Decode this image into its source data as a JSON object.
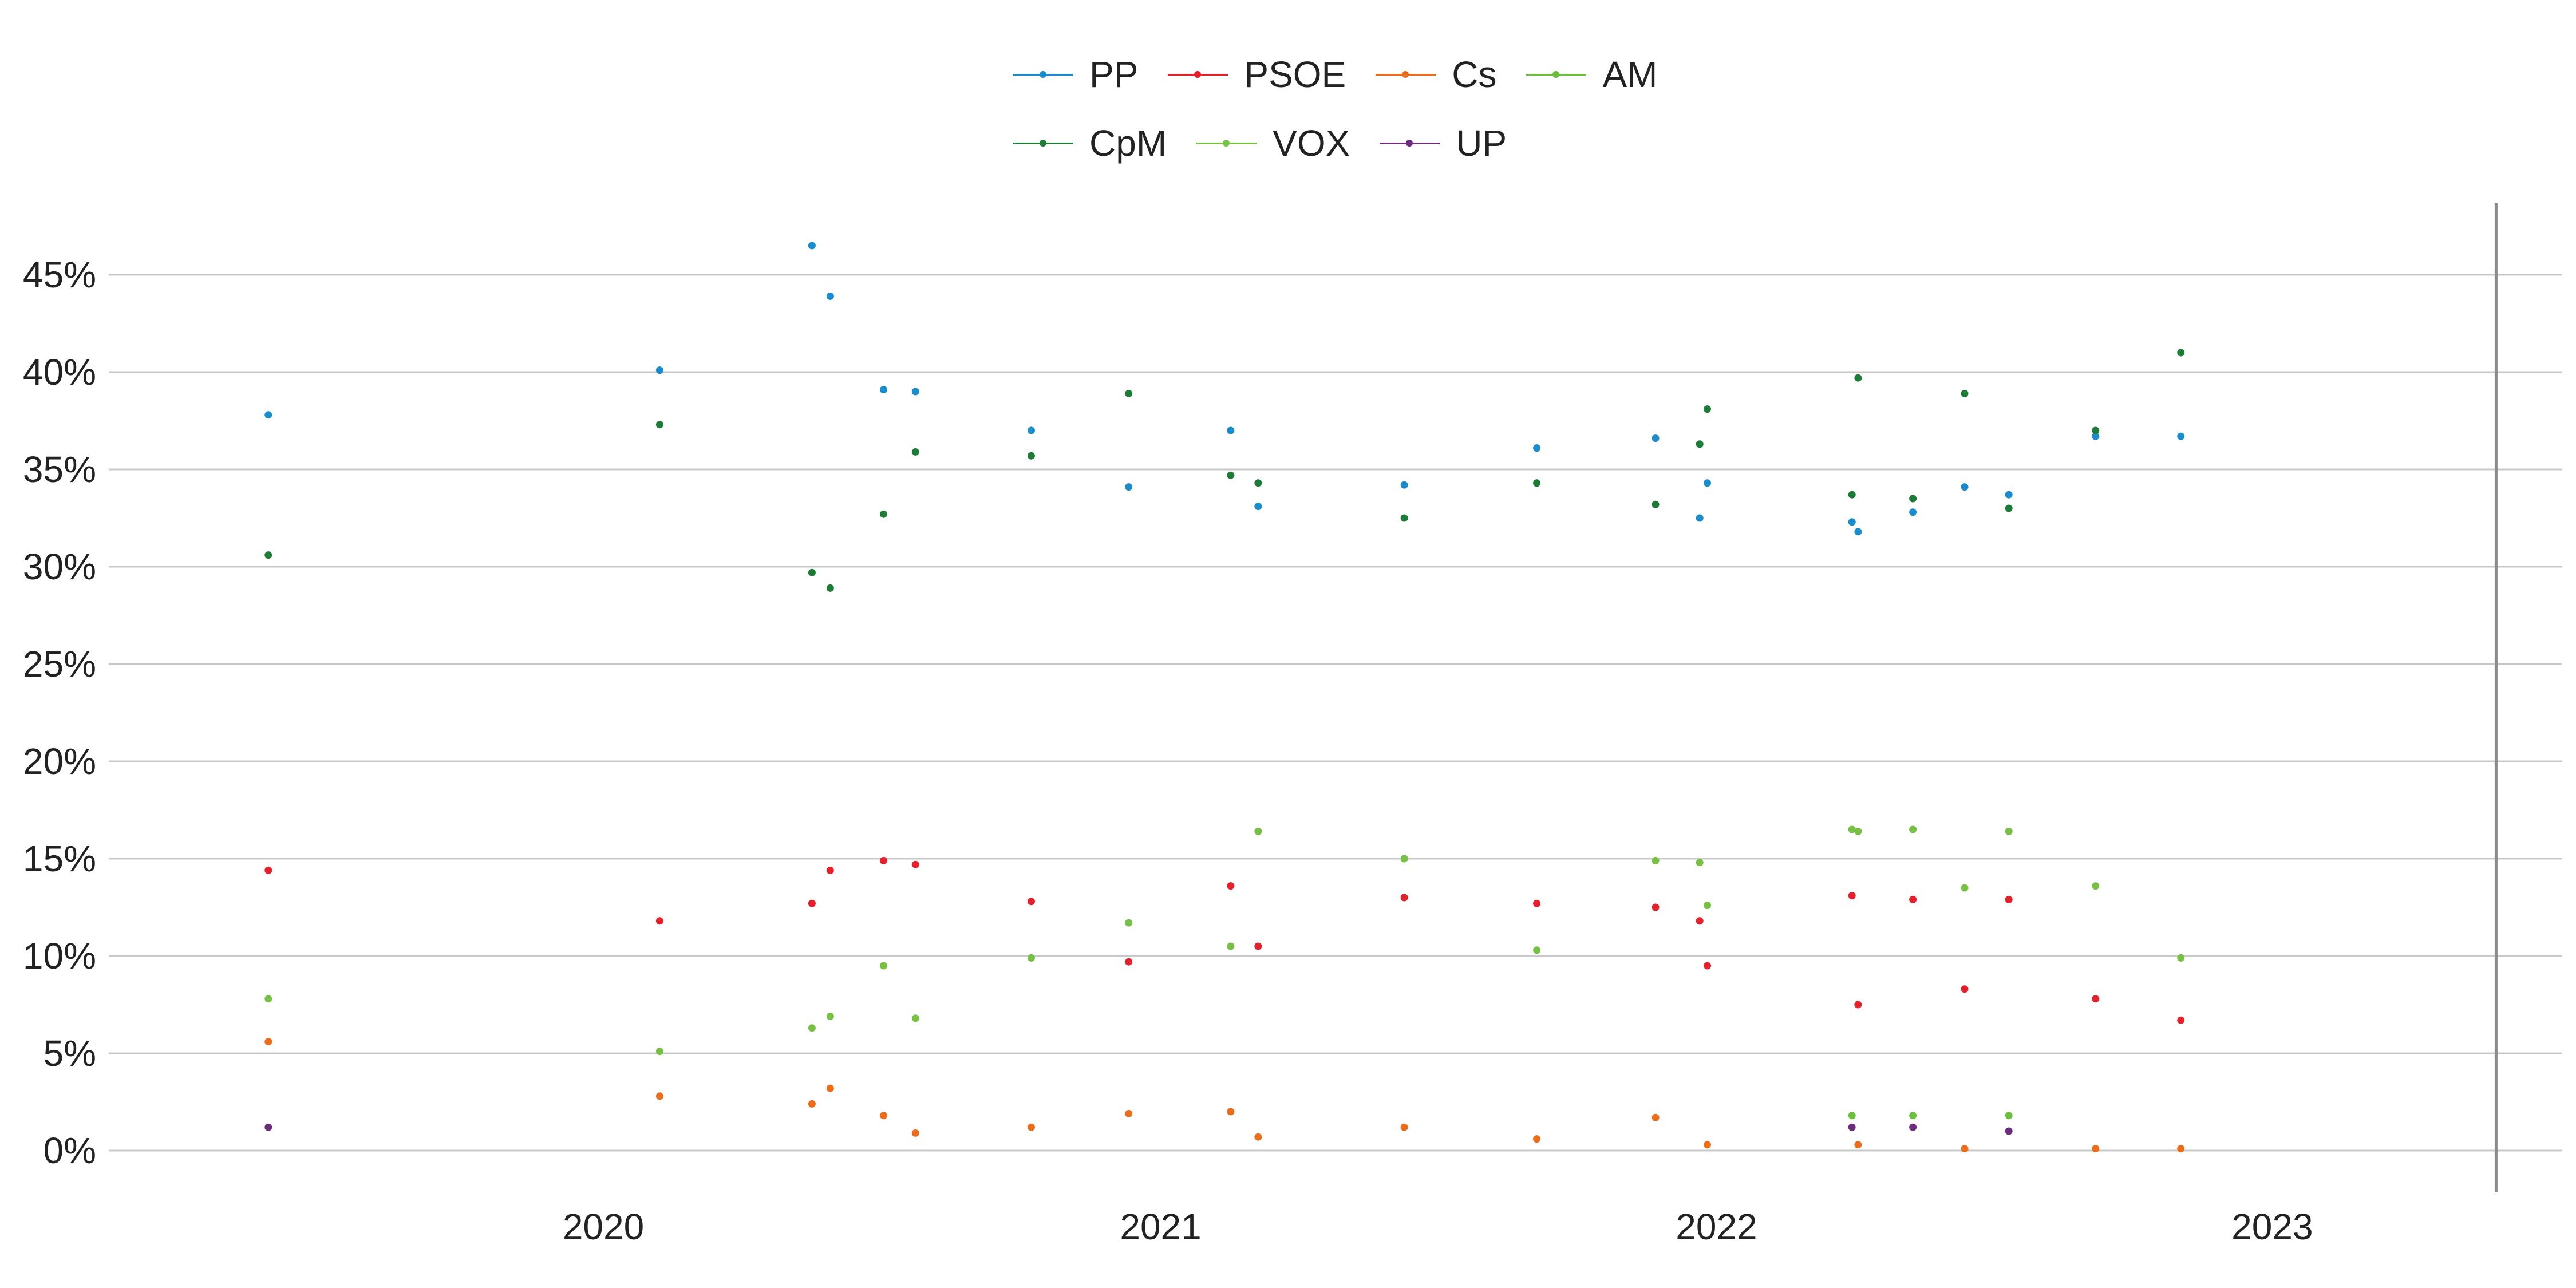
{
  "chart_data": {
    "type": "scatter",
    "legend": {
      "position": "top-center",
      "rows": [
        [
          "PP",
          "PSOE",
          "Cs",
          "AM"
        ],
        [
          "CpM",
          "VOX",
          "UP"
        ]
      ]
    },
    "y_axis": {
      "range": [
        0,
        48
      ],
      "ticks": [
        0,
        5,
        10,
        15,
        20,
        25,
        30,
        35,
        40,
        45
      ],
      "tick_labels": [
        "0%",
        "5%",
        "10%",
        "15%",
        "20%",
        "25%",
        "30%",
        "35%",
        "40%",
        "45%"
      ],
      "gridlines": true
    },
    "x_axis": {
      "range": [
        "2019-05-01",
        "2023-07-15"
      ],
      "ticks": [
        "2020-01-01",
        "2021-01-01",
        "2022-01-01",
        "2023-01-01"
      ],
      "tick_labels": [
        "2020",
        "2021",
        "2022",
        "2023"
      ]
    },
    "reference_line": {
      "date": "2023-05-28"
    },
    "series": [
      {
        "name": "PP",
        "color": "#1a8ccb",
        "points": [
          [
            "2019-05-26",
            37.8
          ],
          [
            "2020-02-07",
            40.1
          ],
          [
            "2020-05-17",
            46.5
          ],
          [
            "2020-05-29",
            43.9
          ],
          [
            "2020-07-03",
            39.1
          ],
          [
            "2020-07-24",
            39.0
          ],
          [
            "2020-10-08",
            37.0
          ],
          [
            "2020-12-11",
            34.1
          ],
          [
            "2021-02-16",
            37.0
          ],
          [
            "2021-03-06",
            33.1
          ],
          [
            "2021-06-10",
            34.2
          ],
          [
            "2021-09-05",
            36.1
          ],
          [
            "2021-11-22",
            36.6
          ],
          [
            "2021-12-21",
            32.5
          ],
          [
            "2021-12-26",
            34.3
          ],
          [
            "2022-03-31",
            32.3
          ],
          [
            "2022-04-04",
            31.8
          ],
          [
            "2022-05-10",
            32.8
          ],
          [
            "2022-06-13",
            34.1
          ],
          [
            "2022-07-12",
            33.7
          ],
          [
            "2022-09-07",
            36.7
          ],
          [
            "2022-11-02",
            36.7
          ]
        ]
      },
      {
        "name": "PSOE",
        "color": "#e4202b",
        "points": [
          [
            "2019-05-26",
            14.4
          ],
          [
            "2020-02-07",
            11.8
          ],
          [
            "2020-05-17",
            12.7
          ],
          [
            "2020-05-29",
            14.4
          ],
          [
            "2020-07-03",
            14.9
          ],
          [
            "2020-07-24",
            14.7
          ],
          [
            "2020-10-08",
            12.8
          ],
          [
            "2020-12-11",
            9.7
          ],
          [
            "2021-02-16",
            13.6
          ],
          [
            "2021-03-06",
            10.5
          ],
          [
            "2021-06-10",
            13.0
          ],
          [
            "2021-09-05",
            12.7
          ],
          [
            "2021-11-22",
            12.5
          ],
          [
            "2021-12-21",
            11.8
          ],
          [
            "2021-12-26",
            9.5
          ],
          [
            "2022-03-31",
            13.1
          ],
          [
            "2022-04-04",
            7.5
          ],
          [
            "2022-05-10",
            12.9
          ],
          [
            "2022-06-13",
            8.3
          ],
          [
            "2022-07-12",
            12.9
          ],
          [
            "2022-09-07",
            7.8
          ],
          [
            "2022-11-02",
            6.7
          ]
        ]
      },
      {
        "name": "Cs",
        "color": "#eb6d1b",
        "points": [
          [
            "2019-05-26",
            5.6
          ],
          [
            "2020-02-07",
            2.8
          ],
          [
            "2020-05-17",
            2.4
          ],
          [
            "2020-05-29",
            3.2
          ],
          [
            "2020-07-03",
            1.8
          ],
          [
            "2020-07-24",
            0.9
          ],
          [
            "2020-10-08",
            1.2
          ],
          [
            "2020-12-11",
            1.9
          ],
          [
            "2021-02-16",
            2.0
          ],
          [
            "2021-03-06",
            0.7
          ],
          [
            "2021-06-10",
            1.2
          ],
          [
            "2021-09-05",
            0.6
          ],
          [
            "2021-11-22",
            1.7
          ],
          [
            "2021-12-26",
            0.3
          ],
          [
            "2022-04-04",
            0.3
          ],
          [
            "2022-06-13",
            0.1
          ],
          [
            "2022-09-07",
            0.1
          ],
          [
            "2022-11-02",
            0.1
          ]
        ]
      },
      {
        "name": "AM",
        "color": "#6bbf3c",
        "points": [
          [
            "2022-03-31",
            1.8
          ],
          [
            "2022-05-10",
            1.8
          ],
          [
            "2022-07-12",
            1.8
          ]
        ]
      },
      {
        "name": "CpM",
        "color": "#1c7b35",
        "points": [
          [
            "2019-05-26",
            30.6
          ],
          [
            "2020-02-07",
            37.3
          ],
          [
            "2020-05-17",
            29.7
          ],
          [
            "2020-05-29",
            28.9
          ],
          [
            "2020-07-03",
            32.7
          ],
          [
            "2020-07-24",
            35.9
          ],
          [
            "2020-10-08",
            35.7
          ],
          [
            "2020-12-11",
            38.9
          ],
          [
            "2021-02-16",
            34.7
          ],
          [
            "2021-03-06",
            34.3
          ],
          [
            "2021-06-10",
            32.5
          ],
          [
            "2021-09-05",
            34.3
          ],
          [
            "2021-11-22",
            33.2
          ],
          [
            "2021-12-21",
            36.3
          ],
          [
            "2021-12-26",
            38.1
          ],
          [
            "2022-03-31",
            33.7
          ],
          [
            "2022-04-04",
            39.7
          ],
          [
            "2022-05-10",
            33.5
          ],
          [
            "2022-06-13",
            38.9
          ],
          [
            "2022-07-12",
            33.0
          ],
          [
            "2022-09-07",
            37.0
          ],
          [
            "2022-11-02",
            41.0
          ]
        ]
      },
      {
        "name": "VOX",
        "color": "#76c043",
        "points": [
          [
            "2019-05-26",
            7.8
          ],
          [
            "2020-02-07",
            5.1
          ],
          [
            "2020-05-17",
            6.3
          ],
          [
            "2020-05-29",
            6.9
          ],
          [
            "2020-07-03",
            9.5
          ],
          [
            "2020-07-24",
            6.8
          ],
          [
            "2020-10-08",
            9.9
          ],
          [
            "2020-12-11",
            11.7
          ],
          [
            "2021-02-16",
            10.5
          ],
          [
            "2021-03-06",
            16.4
          ],
          [
            "2021-06-10",
            15.0
          ],
          [
            "2021-09-05",
            10.3
          ],
          [
            "2021-11-22",
            14.9
          ],
          [
            "2021-12-21",
            14.8
          ],
          [
            "2021-12-26",
            12.6
          ],
          [
            "2022-03-31",
            16.5
          ],
          [
            "2022-04-04",
            16.4
          ],
          [
            "2022-05-10",
            16.5
          ],
          [
            "2022-06-13",
            13.5
          ],
          [
            "2022-07-12",
            16.4
          ],
          [
            "2022-09-07",
            13.6
          ],
          [
            "2022-11-02",
            9.9
          ]
        ]
      },
      {
        "name": "UP",
        "color": "#6b2d7b",
        "points": [
          [
            "2019-05-26",
            1.2
          ],
          [
            "2022-03-31",
            1.2
          ],
          [
            "2022-05-10",
            1.2
          ],
          [
            "2022-07-12",
            1.0
          ]
        ]
      }
    ]
  }
}
